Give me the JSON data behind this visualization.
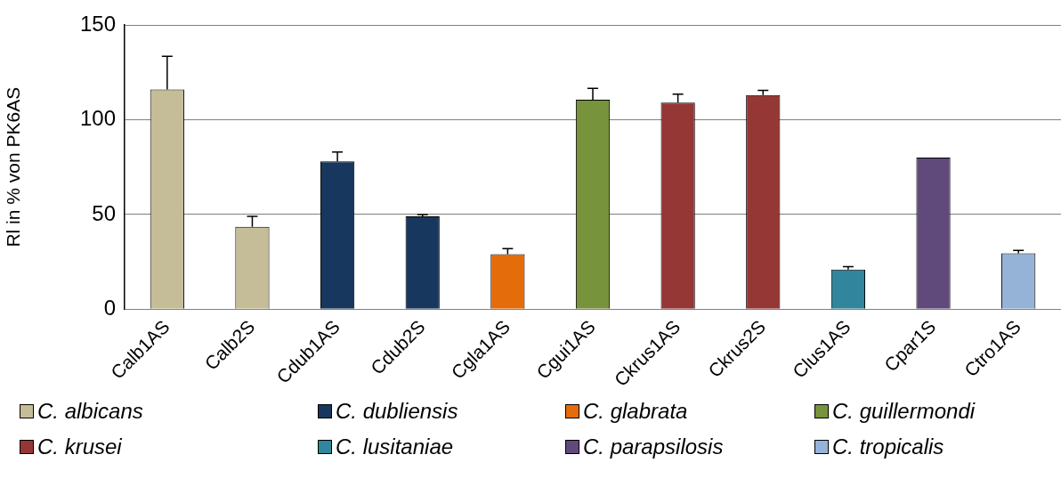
{
  "chart_data": {
    "type": "bar",
    "ylabel": "Rl in % von PK6AS",
    "categories": [
      "Calb1AS",
      "Calb2S",
      "Cdub1AS",
      "Cdub2S",
      "Cgla1AS",
      "Cgui1AS",
      "Ckrus1AS",
      "Ckrus2S",
      "Clus1AS",
      "Cpar1S",
      "Ctro1AS"
    ],
    "stacked": true,
    "ylim": [
      0,
      150
    ],
    "yticks": [
      0,
      50,
      100,
      150
    ],
    "grid": "y",
    "legend": "bottom",
    "series": [
      {
        "name": "C. albicans",
        "color": "#c4bd97",
        "values": [
          116,
          43.5,
          null,
          null,
          null,
          null,
          null,
          null,
          null,
          null,
          null
        ],
        "errors": [
          [
            116,
            133.5
          ],
          [
            43.5,
            49
          ],
          null,
          null,
          null,
          null,
          null,
          null,
          null,
          null,
          null
        ]
      },
      {
        "name": "C. dubliensis",
        "color": "#17375e",
        "values": [
          null,
          null,
          78,
          49,
          null,
          null,
          null,
          null,
          null,
          null,
          null
        ],
        "errors": [
          null,
          null,
          [
            78,
            83
          ],
          [
            49,
            50
          ],
          null,
          null,
          null,
          null,
          null,
          null,
          null
        ]
      },
      {
        "name": "C. glabrata",
        "color": "#e46c0a",
        "values": [
          null,
          null,
          null,
          null,
          29,
          null,
          null,
          null,
          null,
          null,
          null
        ],
        "errors": [
          null,
          null,
          null,
          null,
          [
            29,
            32
          ],
          null,
          null,
          null,
          null,
          null,
          null
        ]
      },
      {
        "name": "C. guillermondi",
        "color": "#77933c",
        "values": [
          null,
          null,
          null,
          null,
          null,
          110.5,
          null,
          null,
          null,
          null,
          null
        ],
        "errors": [
          null,
          null,
          null,
          null,
          null,
          [
            110.5,
            116.5
          ],
          null,
          null,
          null,
          null,
          null
        ]
      },
      {
        "name": "C. krusei",
        "color": "#953735",
        "values": [
          null,
          null,
          null,
          null,
          null,
          null,
          109,
          113,
          null,
          null,
          null
        ],
        "errors": [
          null,
          null,
          null,
          null,
          null,
          null,
          [
            109,
            113.5
          ],
          [
            113,
            115.5
          ],
          null,
          null,
          null
        ]
      },
      {
        "name": "C. lusitaniae",
        "color": "#31859c",
        "values": [
          null,
          null,
          null,
          null,
          null,
          null,
          null,
          null,
          21,
          null,
          null
        ],
        "errors": [
          null,
          null,
          null,
          null,
          null,
          null,
          null,
          null,
          [
            21,
            22.5
          ],
          null,
          null
        ]
      },
      {
        "name": "C. parapsilosis",
        "color": "#604a7b",
        "values": [
          null,
          null,
          null,
          null,
          null,
          null,
          null,
          null,
          null,
          80,
          null
        ]
      },
      {
        "name": "C. tropicalis",
        "color": "#95b3d7",
        "values": [
          null,
          null,
          null,
          null,
          null,
          null,
          null,
          null,
          null,
          null,
          29.5
        ],
        "errors": [
          null,
          null,
          null,
          null,
          null,
          null,
          null,
          null,
          null,
          null,
          [
            29.5,
            31
          ]
        ]
      }
    ]
  }
}
